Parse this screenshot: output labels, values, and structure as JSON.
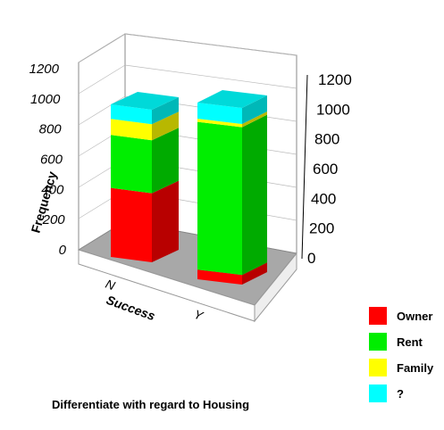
{
  "chart_data": {
    "type": "bar",
    "stacked": true,
    "three_d": true,
    "title": "Differentiate with regard to Housing",
    "xlabel": "Success",
    "ylabel": "Frequency",
    "categories": [
      "N",
      "Y"
    ],
    "ylim": [
      0,
      1200
    ],
    "yticks": [
      "0",
      "200",
      "400",
      "600",
      "800",
      "1000",
      "1200"
    ],
    "yticks_right": [
      "0",
      "200",
      "400",
      "600",
      "800",
      "1000",
      "1200"
    ],
    "legend_position": "bottom-right",
    "series": [
      {
        "name": "Owner",
        "color": "#ff0000",
        "values": [
          430,
          60
        ]
      },
      {
        "name": "Rent",
        "color": "#00ee00",
        "values": [
          330,
          920
        ]
      },
      {
        "name": "Family",
        "color": "#ffff00",
        "values": [
          100,
          20
        ]
      },
      {
        "name": "?",
        "color": "#00ffff",
        "values": [
          90,
          100
        ]
      }
    ]
  }
}
